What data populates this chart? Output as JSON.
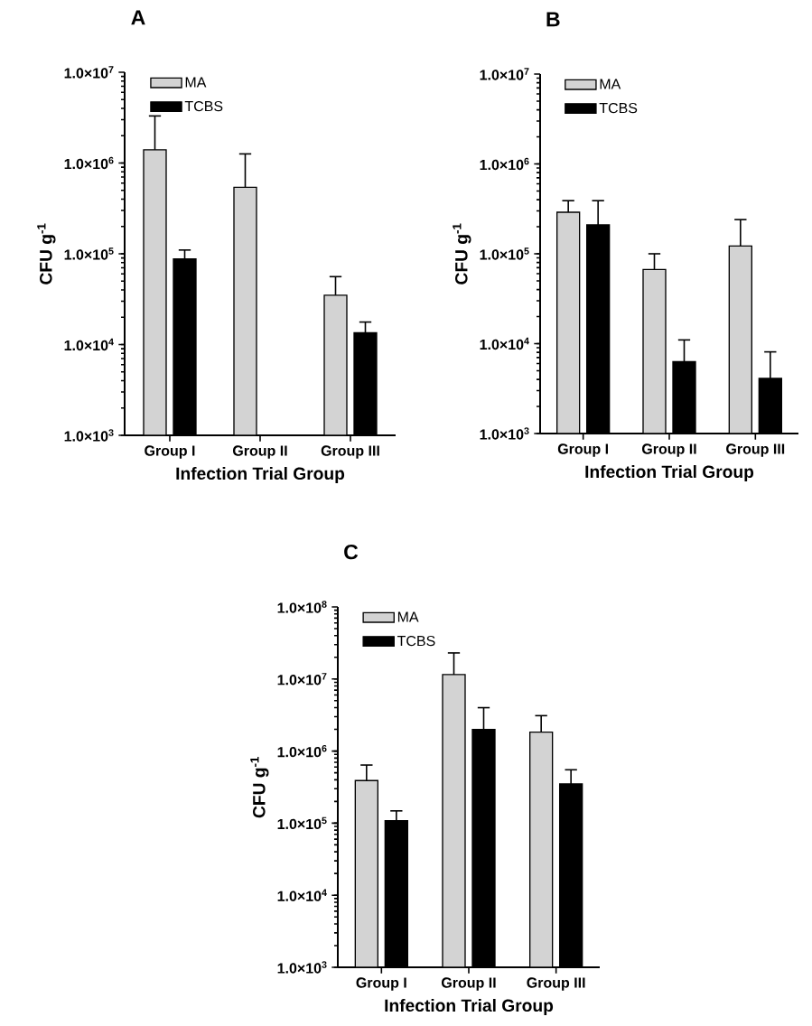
{
  "chart_data": [
    {
      "type": "bar",
      "title": "A",
      "xlabel": "Infection Trial Group",
      "ylabel": "CFU g$^{-1}$",
      "log": "y",
      "legend": "top left",
      "categories": [
        "Group I",
        "Group II",
        "Group III"
      ],
      "ylim": [
        1000,
        10000000
      ],
      "yticks": [
        {
          "value": 1000,
          "label": "1.0×10$^{3}$"
        },
        {
          "value": 10000,
          "label": "1.0×10$^{4}$"
        },
        {
          "value": 100000,
          "label": "1.0×10$^{5}$"
        },
        {
          "value": 1000000,
          "label": "1.0×10$^{6}$"
        },
        {
          "value": 10000000,
          "label": "1.0×10$^{7}$"
        }
      ],
      "series": [
        {
          "name": "MA",
          "color": "#d3d3d3",
          "values": [
            1400000,
            540000,
            35000
          ],
          "errors": [
            1900000,
            720000,
            21000
          ]
        },
        {
          "name": "TCBS",
          "color": "#000000",
          "values": [
            88000,
            null,
            13500
          ],
          "errors": [
            22000,
            null,
            4200
          ]
        }
      ]
    },
    {
      "type": "bar",
      "title": "B",
      "xlabel": "Infection Trial Group",
      "ylabel": "CFU g$^{-1}$",
      "log": "y",
      "legend": "top left",
      "categories": [
        "Group I",
        "Group II",
        "Group III"
      ],
      "ylim": [
        1000,
        10000000
      ],
      "yticks": [
        {
          "value": 1000,
          "label": "1.0×10$^{3}$"
        },
        {
          "value": 10000,
          "label": "1.0×10$^{4}$"
        },
        {
          "value": 100000,
          "label": "1.0×10$^{5}$"
        },
        {
          "value": 1000000,
          "label": "1.0×10$^{6}$"
        },
        {
          "value": 10000000,
          "label": "1.0×10$^{7}$"
        }
      ],
      "series": [
        {
          "name": "MA",
          "color": "#d3d3d3",
          "values": [
            290000,
            67000,
            122000
          ],
          "errors": [
            100000,
            33000,
            118000
          ]
        },
        {
          "name": "TCBS",
          "color": "#000000",
          "values": [
            210000,
            6300,
            4100
          ],
          "errors": [
            180000,
            4700,
            4000
          ]
        }
      ]
    },
    {
      "type": "bar",
      "title": "C",
      "xlabel": "Infection Trial Group",
      "ylabel": "CFU g$^{-1}$",
      "log": "y",
      "legend": "top left",
      "categories": [
        "Group I",
        "Group II",
        "Group III"
      ],
      "ylim": [
        1000,
        100000000
      ],
      "yticks": [
        {
          "value": 1000,
          "label": "1.0×10$^{3}$"
        },
        {
          "value": 10000,
          "label": "1.0×10$^{4}$"
        },
        {
          "value": 100000,
          "label": "1.0×10$^{5}$"
        },
        {
          "value": 1000000,
          "label": "1.0×10$^{6}$"
        },
        {
          "value": 10000000,
          "label": "1.0×10$^{7}$"
        },
        {
          "value": 100000000,
          "label": "1.0×10$^{8}$"
        }
      ],
      "series": [
        {
          "name": "MA",
          "color": "#d3d3d3",
          "values": [
            390000,
            11500000,
            1830000
          ],
          "errors": [
            250000,
            11500000,
            1270000
          ]
        },
        {
          "name": "TCBS",
          "color": "#000000",
          "values": [
            108000,
            2000000,
            350000
          ],
          "errors": [
            40000,
            2000000,
            200000
          ]
        }
      ]
    }
  ]
}
